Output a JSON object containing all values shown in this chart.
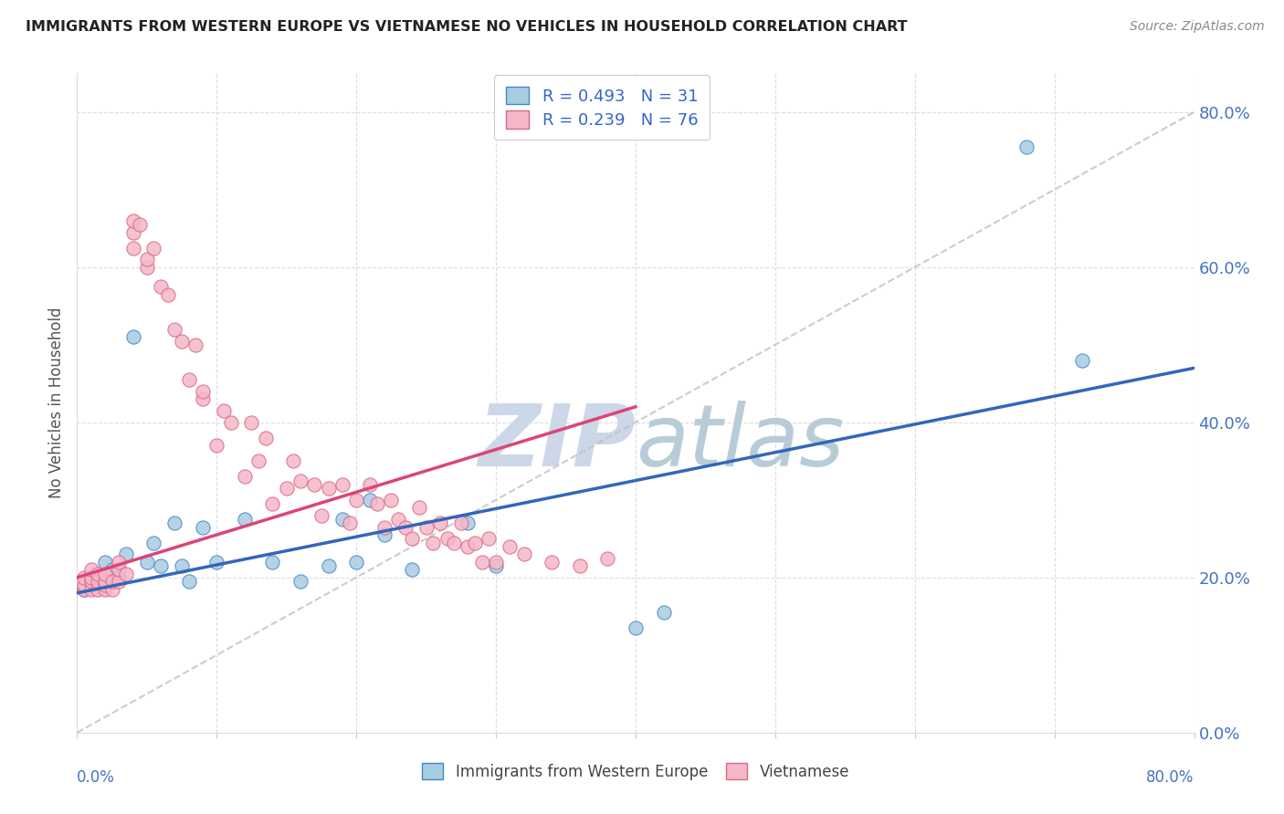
{
  "title": "IMMIGRANTS FROM WESTERN EUROPE VS VIETNAMESE NO VEHICLES IN HOUSEHOLD CORRELATION CHART",
  "source": "Source: ZipAtlas.com",
  "ylabel": "No Vehicles in Household",
  "xmin": 0.0,
  "xmax": 0.8,
  "ymin": 0.0,
  "ymax": 0.85,
  "y_ticks": [
    0.0,
    0.2,
    0.4,
    0.6,
    0.8
  ],
  "legend_blue_label": "R = 0.493   N = 31",
  "legend_pink_label": "R = 0.239   N = 76",
  "legend_bottom_blue": "Immigrants from Western Europe",
  "legend_bottom_pink": "Vietnamese",
  "blue_fill": "#a8cce0",
  "pink_fill": "#f4b8c8",
  "blue_edge": "#4488cc",
  "pink_edge": "#dd6688",
  "blue_line": "#3366bb",
  "pink_line": "#dd4477",
  "diag_color": "#c0c0c0",
  "watermark_color": "#d8e4f0",
  "blue_x": [
    0.005,
    0.01,
    0.015,
    0.02,
    0.025,
    0.03,
    0.035,
    0.04,
    0.05,
    0.055,
    0.06,
    0.07,
    0.075,
    0.08,
    0.09,
    0.1,
    0.12,
    0.14,
    0.16,
    0.18,
    0.19,
    0.2,
    0.21,
    0.22,
    0.24,
    0.28,
    0.3,
    0.4,
    0.42,
    0.68,
    0.72
  ],
  "blue_y": [
    0.185,
    0.2,
    0.195,
    0.22,
    0.21,
    0.2,
    0.23,
    0.51,
    0.22,
    0.245,
    0.215,
    0.27,
    0.215,
    0.195,
    0.265,
    0.22,
    0.275,
    0.22,
    0.195,
    0.215,
    0.275,
    0.22,
    0.3,
    0.255,
    0.21,
    0.27,
    0.215,
    0.135,
    0.155,
    0.755,
    0.48
  ],
  "pink_x": [
    0.005,
    0.005,
    0.005,
    0.01,
    0.01,
    0.01,
    0.01,
    0.015,
    0.015,
    0.015,
    0.02,
    0.02,
    0.02,
    0.02,
    0.025,
    0.025,
    0.03,
    0.03,
    0.03,
    0.035,
    0.04,
    0.04,
    0.04,
    0.045,
    0.05,
    0.05,
    0.055,
    0.06,
    0.065,
    0.07,
    0.075,
    0.08,
    0.085,
    0.09,
    0.09,
    0.1,
    0.105,
    0.11,
    0.12,
    0.125,
    0.13,
    0.135,
    0.14,
    0.15,
    0.155,
    0.16,
    0.17,
    0.175,
    0.18,
    0.19,
    0.195,
    0.2,
    0.21,
    0.215,
    0.22,
    0.225,
    0.23,
    0.235,
    0.24,
    0.245,
    0.25,
    0.255,
    0.26,
    0.265,
    0.27,
    0.275,
    0.28,
    0.285,
    0.29,
    0.295,
    0.3,
    0.31,
    0.32,
    0.34,
    0.36,
    0.38
  ],
  "pink_y": [
    0.185,
    0.19,
    0.2,
    0.185,
    0.195,
    0.2,
    0.21,
    0.185,
    0.195,
    0.205,
    0.185,
    0.19,
    0.195,
    0.205,
    0.185,
    0.195,
    0.195,
    0.21,
    0.22,
    0.205,
    0.625,
    0.645,
    0.66,
    0.655,
    0.6,
    0.61,
    0.625,
    0.575,
    0.565,
    0.52,
    0.505,
    0.455,
    0.5,
    0.43,
    0.44,
    0.37,
    0.415,
    0.4,
    0.33,
    0.4,
    0.35,
    0.38,
    0.295,
    0.315,
    0.35,
    0.325,
    0.32,
    0.28,
    0.315,
    0.32,
    0.27,
    0.3,
    0.32,
    0.295,
    0.265,
    0.3,
    0.275,
    0.265,
    0.25,
    0.29,
    0.265,
    0.245,
    0.27,
    0.25,
    0.245,
    0.27,
    0.24,
    0.245,
    0.22,
    0.25,
    0.22,
    0.24,
    0.23,
    0.22,
    0.215,
    0.225
  ],
  "blue_trend_x0": 0.0,
  "blue_trend_y0": 0.18,
  "blue_trend_x1": 0.8,
  "blue_trend_y1": 0.47,
  "pink_trend_x0": 0.0,
  "pink_trend_y0": 0.2,
  "pink_trend_x1": 0.4,
  "pink_trend_y1": 0.42
}
